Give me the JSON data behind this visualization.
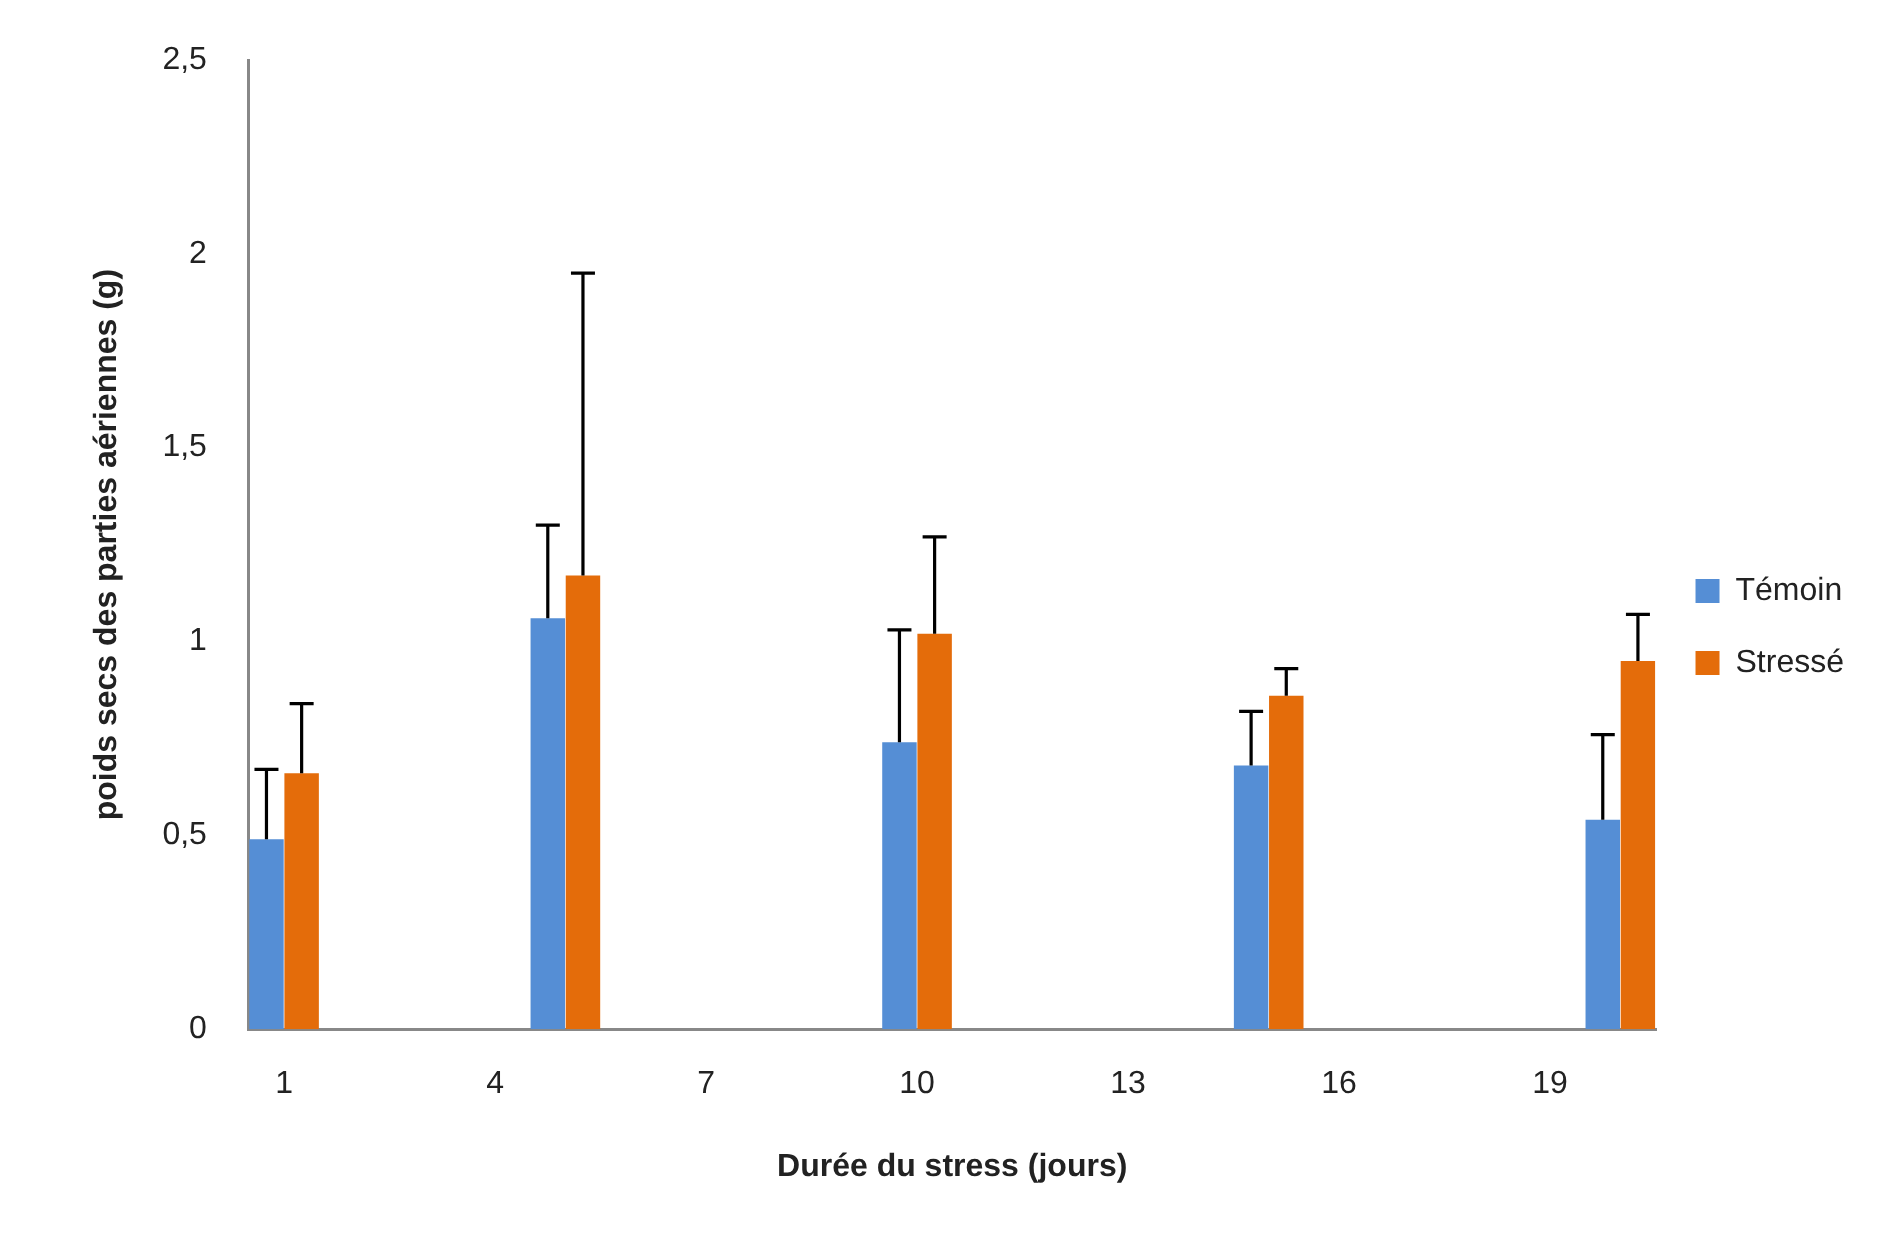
{
  "chart_data": {
    "type": "bar",
    "xlabel": "Durée du stress (jours)",
    "ylabel": "poids secs des parties aériennes (g)",
    "categories": [
      "1",
      null,
      null,
      "4",
      null,
      null,
      "7",
      null,
      null,
      "10",
      null,
      null,
      "13",
      null,
      null,
      "16",
      null,
      null,
      "19",
      null
    ],
    "series": [
      {
        "name": "Témoin",
        "color": "#558ed5",
        "values": [
          0.49,
          null,
          null,
          null,
          1.06,
          null,
          null,
          null,
          null,
          0.74,
          null,
          null,
          null,
          null,
          0.68,
          null,
          null,
          null,
          null,
          0.54
        ],
        "errors": [
          [
            0.49,
            0.67
          ],
          null,
          null,
          null,
          [
            1.06,
            1.3
          ],
          null,
          null,
          null,
          null,
          [
            0.74,
            1.03
          ],
          null,
          null,
          null,
          null,
          [
            0.68,
            0.82
          ],
          null,
          null,
          null,
          null,
          [
            0.54,
            0.76
          ]
        ]
      },
      {
        "name": "Stressé",
        "color": "#e46c0a",
        "values": [
          0.66,
          null,
          null,
          null,
          1.17,
          null,
          null,
          null,
          null,
          1.02,
          null,
          null,
          null,
          null,
          0.86,
          null,
          null,
          null,
          null,
          0.95
        ],
        "errors": [
          [
            0.66,
            0.84
          ],
          null,
          null,
          null,
          [
            1.17,
            1.95
          ],
          null,
          null,
          null,
          null,
          [
            1.02,
            1.27
          ],
          null,
          null,
          null,
          null,
          [
            0.86,
            0.93
          ],
          null,
          null,
          null,
          null,
          [
            0.95,
            1.07
          ]
        ]
      }
    ],
    "ylim": [
      0,
      2.5
    ],
    "yticks": [
      0,
      {
        "value": 0.5,
        "label": "0,5"
      },
      1,
      {
        "value": 1.5,
        "label": "1,5"
      },
      2,
      {
        "value": 2.5,
        "label": "2,5"
      }
    ],
    "grid": false,
    "legend": "right"
  }
}
